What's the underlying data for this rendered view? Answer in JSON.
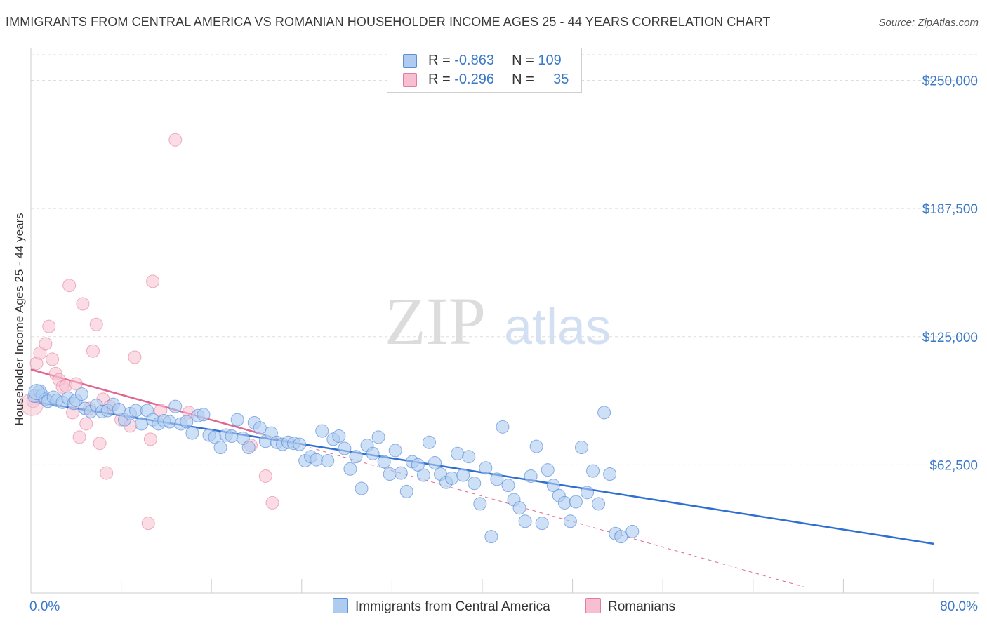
{
  "title": "IMMIGRANTS FROM CENTRAL AMERICA VS ROMANIAN HOUSEHOLDER INCOME AGES 25 - 44 YEARS CORRELATION CHART",
  "source": "Source: ZipAtlas.com",
  "watermark": {
    "zip": "ZIP",
    "atlas": "atlas"
  },
  "legend": {
    "r_label": "R =",
    "n_label": "N =",
    "rows": [
      {
        "r": "-0.863",
        "n": "109",
        "color": "#aecbf0",
        "border": "#5b8fd8"
      },
      {
        "r": "-0.296",
        "n": "35",
        "color": "#f7bfd0",
        "border": "#e37c9f"
      }
    ]
  },
  "bottom_legend": {
    "series1": "Immigrants from Central America",
    "series2": "Romanians"
  },
  "chart_data": {
    "type": "scatter",
    "xlabel": "",
    "ylabel": "Householder Income Ages 25 - 44 years",
    "xlim": [
      0,
      80
    ],
    "ylim": [
      0,
      262500
    ],
    "x_tick_labels": [
      "0.0%",
      "80.0%"
    ],
    "y_ticks": [
      62500,
      125000,
      187500,
      250000
    ],
    "y_tick_labels": [
      "$62,500",
      "$125,000",
      "$187,500",
      "$250,000"
    ],
    "grid": "horizontal dashed",
    "colors": {
      "series1": "#5b8fd8",
      "series1_fill": "#aecbf0",
      "series2": "#e37c9f",
      "series2_fill": "#f7bfd0",
      "trend1": "#2f6fd1",
      "trend2": "#e06690"
    },
    "series": [
      {
        "name": "Immigrants from Central America",
        "trend": {
          "x": [
            0,
            80
          ],
          "y": [
            93500,
            24000
          ]
        },
        "points": [
          [
            0.3,
            96000
          ],
          [
            0.8,
            98500
          ],
          [
            1.0,
            96500
          ],
          [
            1.3,
            94500
          ],
          [
            1.5,
            93500
          ],
          [
            2.0,
            95500
          ],
          [
            2.3,
            94000
          ],
          [
            2.8,
            93000
          ],
          [
            3.3,
            95000
          ],
          [
            3.8,
            92500
          ],
          [
            4.0,
            94000
          ],
          [
            4.5,
            97000
          ],
          [
            4.8,
            90000
          ],
          [
            5.3,
            88500
          ],
          [
            5.8,
            91500
          ],
          [
            6.3,
            88500
          ],
          [
            6.8,
            89000
          ],
          [
            7.3,
            92000
          ],
          [
            7.8,
            89500
          ],
          [
            8.3,
            84500
          ],
          [
            8.8,
            87500
          ],
          [
            9.3,
            89000
          ],
          [
            9.8,
            82500
          ],
          [
            10.3,
            89000
          ],
          [
            10.8,
            84500
          ],
          [
            11.3,
            82500
          ],
          [
            11.8,
            84000
          ],
          [
            12.3,
            83500
          ],
          [
            12.8,
            91000
          ],
          [
            13.3,
            82500
          ],
          [
            13.8,
            83500
          ],
          [
            14.3,
            78000
          ],
          [
            14.8,
            86500
          ],
          [
            15.3,
            87000
          ],
          [
            15.8,
            77000
          ],
          [
            16.3,
            76000
          ],
          [
            16.8,
            71000
          ],
          [
            17.3,
            77000
          ],
          [
            17.8,
            76500
          ],
          [
            18.3,
            84500
          ],
          [
            18.8,
            75500
          ],
          [
            19.3,
            71000
          ],
          [
            19.8,
            83000
          ],
          [
            20.3,
            80500
          ],
          [
            20.8,
            74000
          ],
          [
            21.3,
            78000
          ],
          [
            21.8,
            73500
          ],
          [
            22.3,
            72500
          ],
          [
            22.8,
            73500
          ],
          [
            23.3,
            73000
          ],
          [
            23.8,
            72500
          ],
          [
            24.3,
            64500
          ],
          [
            24.8,
            66500
          ],
          [
            25.3,
            65000
          ],
          [
            25.8,
            79000
          ],
          [
            26.3,
            64500
          ],
          [
            26.8,
            75000
          ],
          [
            27.3,
            76500
          ],
          [
            27.8,
            70500
          ],
          [
            28.3,
            60500
          ],
          [
            28.8,
            66500
          ],
          [
            29.3,
            51000
          ],
          [
            29.8,
            72000
          ],
          [
            30.3,
            68000
          ],
          [
            30.8,
            76000
          ],
          [
            31.3,
            64000
          ],
          [
            31.8,
            58000
          ],
          [
            32.3,
            69500
          ],
          [
            32.8,
            58500
          ],
          [
            33.3,
            49500
          ],
          [
            33.8,
            64000
          ],
          [
            34.3,
            62500
          ],
          [
            34.8,
            57500
          ],
          [
            35.3,
            73500
          ],
          [
            35.8,
            63500
          ],
          [
            36.3,
            58000
          ],
          [
            36.8,
            54000
          ],
          [
            37.3,
            56000
          ],
          [
            37.8,
            68000
          ],
          [
            38.3,
            57500
          ],
          [
            38.8,
            66500
          ],
          [
            39.3,
            53500
          ],
          [
            39.8,
            43500
          ],
          [
            40.3,
            61000
          ],
          [
            40.8,
            27500
          ],
          [
            41.3,
            55500
          ],
          [
            41.8,
            81000
          ],
          [
            42.3,
            52500
          ],
          [
            42.8,
            45500
          ],
          [
            43.3,
            41500
          ],
          [
            43.8,
            35000
          ],
          [
            44.3,
            57000
          ],
          [
            44.8,
            71500
          ],
          [
            45.3,
            34000
          ],
          [
            45.8,
            60000
          ],
          [
            46.3,
            52500
          ],
          [
            46.8,
            47500
          ],
          [
            47.3,
            44000
          ],
          [
            47.8,
            35000
          ],
          [
            48.3,
            44500
          ],
          [
            48.8,
            71000
          ],
          [
            49.3,
            49000
          ],
          [
            49.8,
            59500
          ],
          [
            50.3,
            43500
          ],
          [
            50.8,
            88000
          ],
          [
            51.3,
            58000
          ],
          [
            51.8,
            29000
          ],
          [
            52.3,
            27500
          ],
          [
            53.3,
            30000
          ]
        ]
      },
      {
        "name": "Romanians",
        "trend": {
          "x": [
            0,
            20.5
          ],
          "y": [
            109000,
            77500
          ]
        },
        "trend_dashed": {
          "x": [
            20.5,
            68.5
          ],
          "y": [
            77500,
            3000
          ]
        },
        "points": [
          [
            0.2,
            93500
          ],
          [
            0.5,
            112000
          ],
          [
            0.8,
            117000
          ],
          [
            1.3,
            121500
          ],
          [
            1.6,
            130000
          ],
          [
            1.9,
            114000
          ],
          [
            2.2,
            107000
          ],
          [
            2.5,
            104000
          ],
          [
            2.8,
            100500
          ],
          [
            3.1,
            101000
          ],
          [
            3.4,
            150000
          ],
          [
            3.7,
            88000
          ],
          [
            4.0,
            102000
          ],
          [
            4.3,
            76000
          ],
          [
            4.6,
            141000
          ],
          [
            4.9,
            82500
          ],
          [
            5.2,
            90000
          ],
          [
            5.5,
            118000
          ],
          [
            5.8,
            131000
          ],
          [
            6.1,
            73000
          ],
          [
            6.4,
            94500
          ],
          [
            6.7,
            58500
          ],
          [
            7.0,
            91000
          ],
          [
            8.0,
            84500
          ],
          [
            8.8,
            81500
          ],
          [
            9.2,
            115000
          ],
          [
            10.4,
            34000
          ],
          [
            10.6,
            75000
          ],
          [
            10.8,
            152000
          ],
          [
            11.5,
            89000
          ],
          [
            12.8,
            221000
          ],
          [
            14.0,
            88000
          ],
          [
            19.5,
            72000
          ],
          [
            20.8,
            57000
          ],
          [
            21.4,
            44000
          ]
        ]
      }
    ]
  }
}
